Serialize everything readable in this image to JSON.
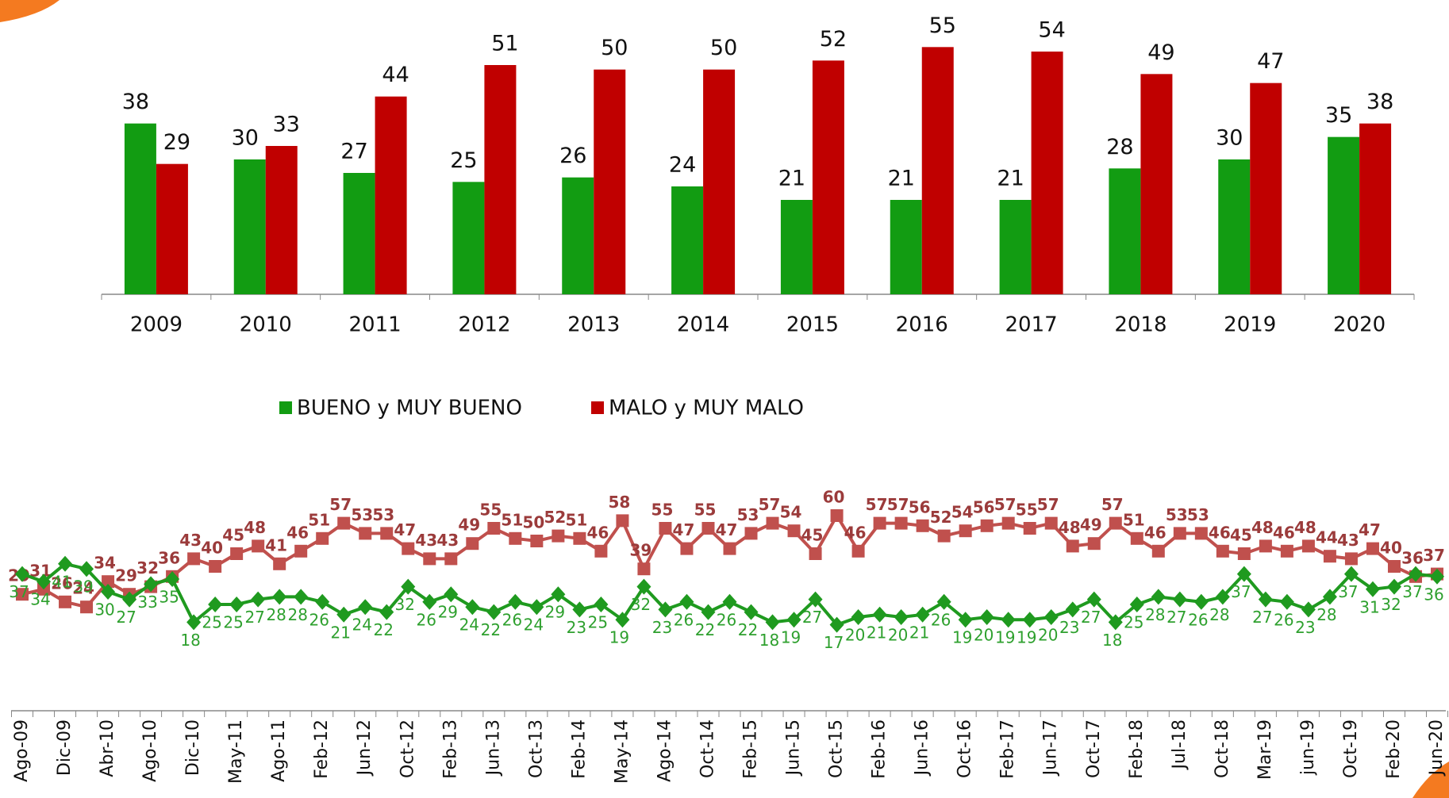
{
  "chart_data": [
    {
      "type": "bar",
      "categories": [
        "2009",
        "2010",
        "2011",
        "2012",
        "2013",
        "2014",
        "2015",
        "2016",
        "2017",
        "2018",
        "2019",
        "2020"
      ],
      "series": [
        {
          "name": "BUENO y MUY BUENO",
          "color": "#129c12",
          "values": [
            38,
            30,
            27,
            25,
            26,
            24,
            21,
            21,
            21,
            28,
            30,
            35
          ]
        },
        {
          "name": "MALO y MUY MALO",
          "color": "#c00000",
          "values": [
            29,
            33,
            44,
            51,
            50,
            50,
            52,
            55,
            54,
            49,
            47,
            38
          ]
        }
      ],
      "ylim": [
        0,
        60
      ],
      "legend": "bottom"
    },
    {
      "type": "line",
      "categories": [
        "Ago-09",
        null,
        "Dic-09",
        null,
        "Abr-10",
        null,
        "Ago-10",
        null,
        "Dic-10",
        null,
        "May-11",
        null,
        "Ago-11",
        null,
        "Feb-12",
        null,
        "Jun-12",
        null,
        "Oct-12",
        null,
        "Feb-13",
        null,
        "Jun-13",
        null,
        "Oct-13",
        null,
        "Feb-14",
        null,
        "May-14",
        null,
        "Ago-14",
        null,
        "Oct-14",
        null,
        "Feb-15",
        null,
        "Jun-15",
        null,
        "Oct-15",
        null,
        "Feb-16",
        null,
        "Jun-16",
        null,
        "Oct-16",
        null,
        "Feb-17",
        null,
        "Jun-17",
        null,
        "Oct-17",
        null,
        "Feb-18",
        null,
        "Jul-18",
        null,
        "Oct-18",
        null,
        "Mar-19",
        null,
        "jun-19",
        null,
        "Oct-19",
        null,
        "Feb-20",
        null,
        "Jun-20"
      ],
      "series": [
        {
          "color": "#c0504d",
          "label_color": "#9b3b3b",
          "marker": "square",
          "values": [
            29,
            31,
            26,
            24,
            34,
            29,
            32,
            36,
            43,
            40,
            45,
            48,
            41,
            46,
            51,
            57,
            53,
            53,
            47,
            43,
            43,
            49,
            55,
            51,
            50,
            52,
            51,
            46,
            58,
            39,
            55,
            47,
            55,
            47,
            53,
            57,
            54,
            45,
            60,
            46,
            57,
            57,
            56,
            52,
            54,
            56,
            57,
            55,
            57,
            48,
            49,
            57,
            51,
            46,
            53,
            53,
            46,
            45,
            48,
            46,
            48,
            44,
            43,
            47,
            40,
            36,
            37
          ]
        },
        {
          "color": "#1f9a1f",
          "label_color": "#2ea02e",
          "marker": "diamond",
          "values": [
            37,
            34,
            41,
            39,
            30,
            27,
            33,
            35,
            18,
            25,
            25,
            27,
            28,
            28,
            26,
            21,
            24,
            22,
            32,
            26,
            29,
            24,
            22,
            26,
            24,
            29,
            23,
            25,
            19,
            32,
            23,
            26,
            22,
            26,
            22,
            18,
            19,
            27,
            17,
            20,
            21,
            20,
            21,
            26,
            19,
            20,
            19,
            19,
            20,
            23,
            27,
            18,
            25,
            28,
            27,
            26,
            28,
            37,
            27,
            26,
            23,
            28,
            37,
            31,
            32,
            37,
            36
          ]
        }
      ],
      "ylim": [
        10,
        70
      ]
    }
  ]
}
